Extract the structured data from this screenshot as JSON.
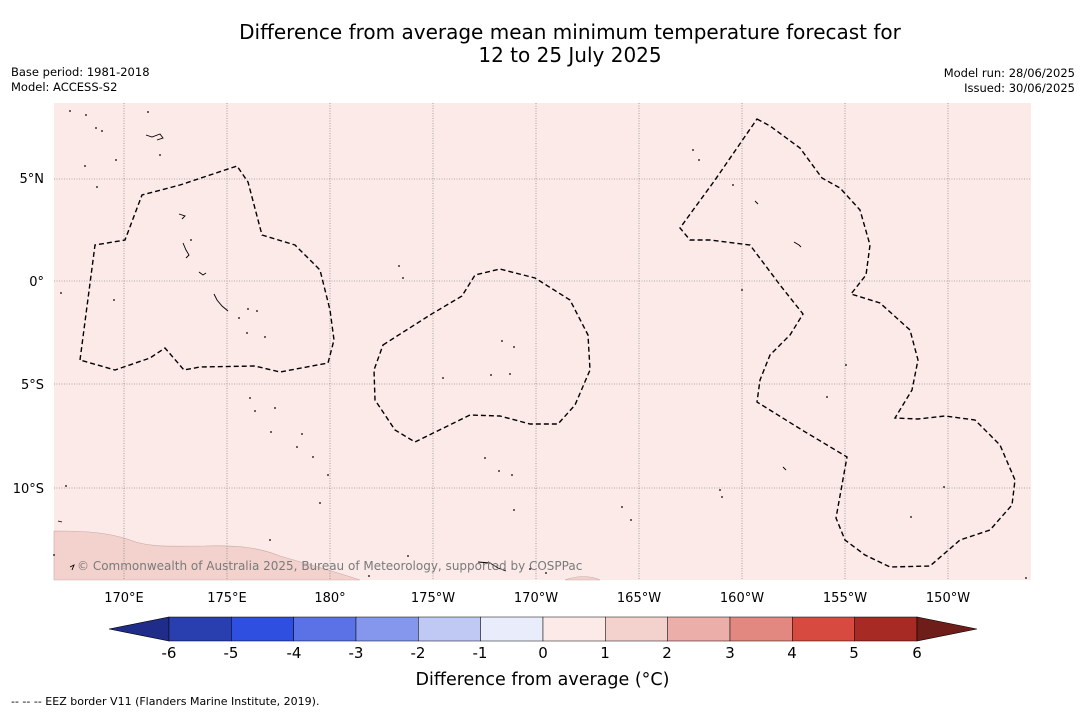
{
  "header": {
    "title_line1": "Difference from average mean minimum temperature forecast for",
    "title_line2": "12 to 25 July 2025",
    "base_period": "Base period: 1981-2018",
    "model": "Model: ACCESS-S2",
    "model_run": "Model run: 28/06/2025",
    "issued": "Issued: 30/06/2025"
  },
  "map": {
    "background_color": "#fbeae8",
    "land_color": "#f3d2cd",
    "longitude_labels": [
      "170°E",
      "175°E",
      "180°",
      "175°W",
      "170°W",
      "165°W",
      "160°W",
      "155°W",
      "150°W"
    ],
    "latitude_labels": [
      "5°N",
      "0°",
      "5°S",
      "10°S"
    ],
    "copyright": "© Commonwealth of Australia 2025, Bureau of Meteorology, supported by COSPPac"
  },
  "colorbar": {
    "title": "Difference from average (°C)",
    "tick_labels": [
      "-6",
      "-5",
      "-4",
      "-3",
      "-2",
      "-1",
      "0",
      "1",
      "2",
      "3",
      "4",
      "5",
      "6"
    ],
    "colors": [
      "#1f2c8a",
      "#2a3faf",
      "#2f4fe0",
      "#5a72e6",
      "#8497ec",
      "#c0c8f4",
      "#e9ecfb",
      "#fbeae8",
      "#f3d2cd",
      "#ecaea8",
      "#e38880",
      "#d64a3f",
      "#a82a24",
      "#6f1d19"
    ]
  },
  "legend": {
    "eez_text": "-- -- -- EEZ border V11 (Flanders Marine Institute, 2019)."
  }
}
